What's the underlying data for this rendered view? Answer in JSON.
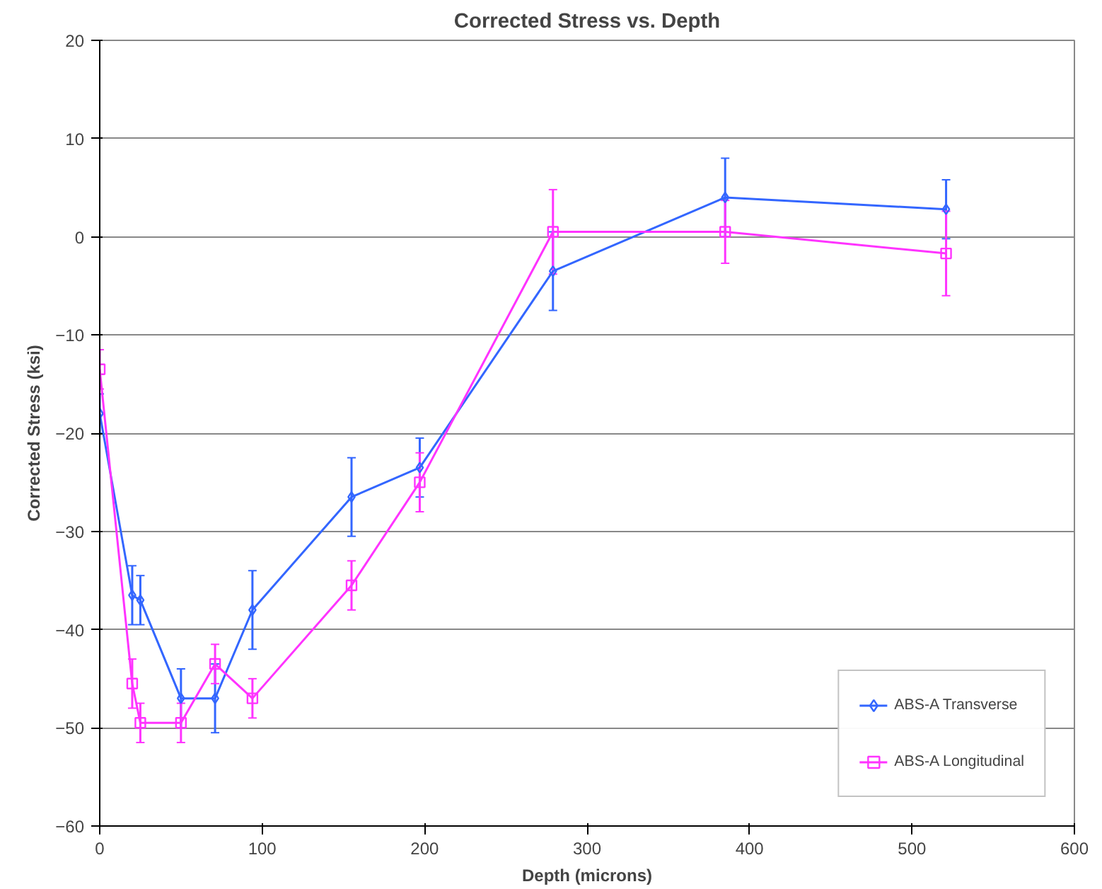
{
  "chart_data": {
    "type": "line",
    "title": "Corrected Stress vs. Depth",
    "xlabel": "Depth (microns)",
    "ylabel": "Corrected Stress (ksi)",
    "x": [
      0,
      20,
      25,
      50,
      71,
      94,
      155,
      197,
      279,
      385,
      521
    ],
    "series": [
      {
        "name": "ABS-A Transverse",
        "color": "#3366ff",
        "marker": "diamond",
        "values": [
          -18,
          -36.5,
          -37,
          -47,
          -47,
          -38,
          -26.5,
          -23.5,
          -3.5,
          4,
          2.8
        ],
        "errors": [
          2,
          3,
          2.5,
          3,
          3.5,
          4,
          4,
          3,
          4,
          4,
          3
        ]
      },
      {
        "name": "ABS-A Longitudinal",
        "color": "#ff33ff",
        "marker": "square",
        "values": [
          -13.5,
          -45.5,
          -49.5,
          -49.5,
          -43.5,
          -47,
          -35.5,
          -25,
          0.5,
          0.5,
          -1.7
        ],
        "errors": [
          2,
          2.5,
          2,
          2,
          2,
          2,
          2.5,
          3,
          4.3,
          3.2,
          4.3
        ]
      }
    ],
    "xlim": [
      0,
      600
    ],
    "xticks": [
      0,
      100,
      200,
      300,
      400,
      500,
      600
    ],
    "ylim": [
      -60,
      20
    ],
    "yticks": [
      -60,
      -50,
      -40,
      -30,
      -20,
      -10,
      0,
      10,
      20
    ],
    "grid": "y",
    "legend": "bottom right",
    "line_style": "solid"
  }
}
